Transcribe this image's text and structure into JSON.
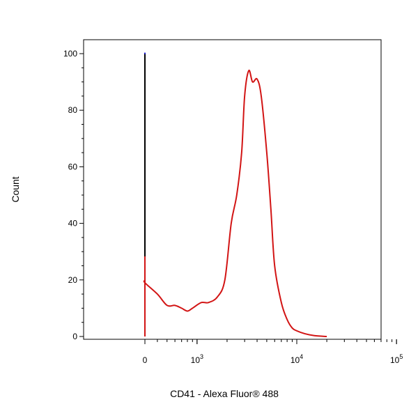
{
  "chart_data": {
    "type": "line",
    "title": "",
    "xlabel": "CD41 - Alexa Fluor® 488",
    "ylabel": "Count",
    "x_scale": "biexponential",
    "xlim": [
      -200,
      150000
    ],
    "ylim": [
      0,
      105
    ],
    "grid": false,
    "legend": "none",
    "y_ticks": [
      "0",
      "20",
      "40",
      "60",
      "80",
      "100"
    ],
    "x_ticks": [
      {
        "label": "0",
        "value": 0
      },
      {
        "label": "10",
        "sup": "3",
        "value": 1000
      },
      {
        "label": "10",
        "sup": "4",
        "value": 10000
      },
      {
        "label": "10",
        "sup": "5",
        "value": 100000
      }
    ],
    "series": [
      {
        "color": "#1010d0",
        "x": [
          -200,
          -170,
          -150,
          -130,
          -120,
          -110,
          -100,
          -95,
          -90,
          -85,
          -80,
          -75,
          -70,
          -62,
          -55,
          -48,
          -40,
          -30,
          -20,
          -10
        ],
        "y": [
          0,
          1,
          3,
          10,
          20,
          35,
          55,
          75,
          92,
          100,
          96,
          82,
          60,
          35,
          18,
          8,
          3,
          1,
          0.5,
          0
        ]
      },
      {
        "color": "#000000",
        "x": [
          -180,
          -140,
          -110,
          -95,
          -85,
          -75,
          -70,
          -65,
          -62,
          -58,
          -55,
          -52,
          -50,
          -48,
          -45,
          -40,
          -35,
          -30,
          -25,
          -20,
          -10,
          0
        ],
        "y": [
          0,
          0.5,
          2,
          5,
          12,
          30,
          45,
          70,
          85,
          98,
          98,
          85,
          70,
          55,
          40,
          22,
          12,
          5,
          2,
          1,
          0.3,
          0
        ]
      },
      {
        "color": "#d21414",
        "x": [
          -150,
          -100,
          -80,
          -60,
          -40,
          -20,
          -5,
          10,
          40,
          80,
          120,
          160,
          200,
          300,
          400,
          500,
          600,
          700,
          800,
          900,
          1100,
          1300,
          1600,
          1900,
          2200,
          2500,
          2800,
          3000,
          3300,
          3600,
          4000,
          4400,
          5000,
          5500,
          6000,
          7000,
          8000,
          9000,
          10000,
          12000,
          15000,
          20000
        ],
        "y": [
          0,
          1,
          2,
          4,
          7,
          11,
          15,
          17,
          22,
          28,
          26,
          22,
          20,
          19,
          15,
          11,
          11,
          10,
          9,
          10,
          12,
          12,
          14,
          20,
          40,
          50,
          65,
          85,
          94,
          90,
          91,
          85,
          65,
          45,
          25,
          12,
          6,
          3,
          2,
          1,
          0.3,
          0
        ]
      }
    ]
  }
}
